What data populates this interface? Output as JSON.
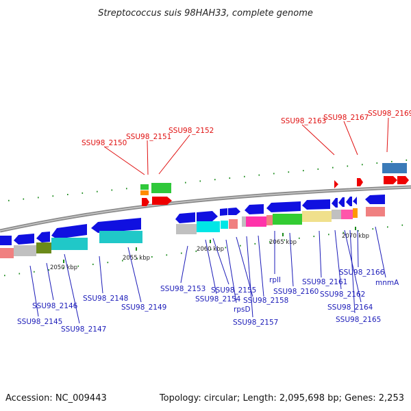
{
  "title": "Streptococcus suis 98HAH33, complete genome",
  "footer": {
    "accession": "Accession: NC_009443",
    "summary": "Topology: circular; Length: 2,095,698 bp; Genes: 2,253"
  },
  "colors": {
    "background": "#ffffff",
    "backbone": "#8a8a8a",
    "gene_arrow": "#1010e0",
    "label_normal": "#1a1ab8",
    "label_highlight": "#e01010",
    "dots": "#1a8a1a"
  },
  "scale_ticks": [
    "2050 kbp",
    "2055 kbp",
    "2060 kbp",
    "2065 kbp",
    "2070 kbp"
  ],
  "gene_labels_top": [
    "SSU98_2150",
    "SSU98_2151",
    "SSU98_2152",
    "SSU98_2163",
    "SSU98_2167",
    "SSU98_2169"
  ],
  "gene_labels_bottom": [
    "SSU98_2146",
    "SSU98_2145",
    "SSU98_2147",
    "SSU98_2148",
    "SSU98_2149",
    "SSU98_2153",
    "SSU98_2155",
    "SSU98_2154",
    "rpsD",
    "SSU98_2158",
    "SSU98_2157",
    "rplI",
    "SSU98_2160",
    "SSU98_2161",
    "SSU98_2162",
    "SSU98_2166",
    "SSU98_2164",
    "SSU98_2165",
    "mnmA"
  ]
}
